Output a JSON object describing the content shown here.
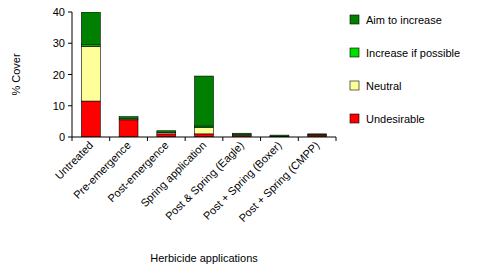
{
  "chart_data": {
    "type": "bar",
    "stacked": true,
    "x_label": "Herbicide applications",
    "y_label": "% Cover",
    "categories": [
      "Untreated",
      "Pre-emergence",
      "Post-emergence",
      "Spring application",
      "Post & Spring (Eagle)",
      "Post + Spring (Boxer)",
      "Post + Spring (CMPP)"
    ],
    "series": [
      {
        "name": "Undesirable",
        "color": "#ff0000",
        "values": [
          11.5,
          5.5,
          1,
          1,
          0.5,
          0.1,
          0.6
        ]
      },
      {
        "name": "Neutral",
        "color": "#ffff99",
        "values": [
          17.5,
          0.3,
          0.5,
          2,
          0.2,
          0.1,
          0.1
        ]
      },
      {
        "name": "Increase if possible",
        "color": "#00dd00",
        "values": [
          0.5,
          0,
          0,
          0.5,
          0,
          0,
          0
        ]
      },
      {
        "name": "Aim to increase",
        "color": "#008000",
        "values": [
          10.5,
          0.7,
          0.5,
          16,
          0.5,
          0.4,
          0.3
        ]
      }
    ],
    "ylim": [
      0,
      40
    ],
    "yticks": [
      0,
      10,
      20,
      30,
      40
    ],
    "grid": false,
    "legend": "right"
  }
}
